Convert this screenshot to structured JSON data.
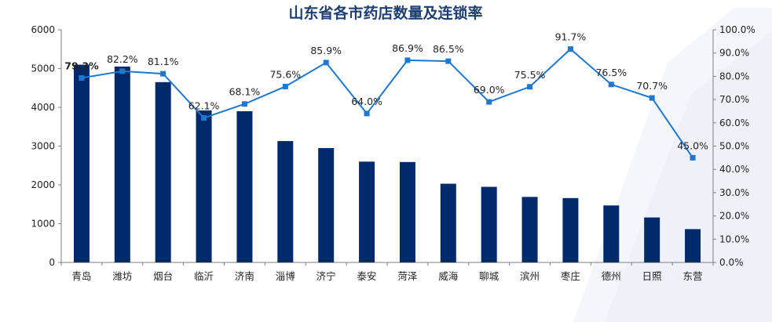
{
  "chart_data": {
    "type": "bar",
    "title": "山东省各市药店数量及连锁率",
    "categories": [
      "青岛",
      "潍坊",
      "烟台",
      "临沂",
      "济南",
      "淄博",
      "济宁",
      "泰安",
      "菏泽",
      "威海",
      "聊城",
      "滨州",
      "枣庄",
      "德州",
      "日照",
      "东营"
    ],
    "series": [
      {
        "type": "bar",
        "axis": "left",
        "color": "#002a6b",
        "values": [
          5100,
          5050,
          4650,
          3920,
          3900,
          3130,
          2950,
          2600,
          2590,
          2030,
          1950,
          1690,
          1660,
          1470,
          1160,
          860
        ]
      },
      {
        "type": "line",
        "axis": "right",
        "color": "#1f77d0",
        "values": [
          79.3,
          82.2,
          81.1,
          62.1,
          68.1,
          75.6,
          85.9,
          64.0,
          86.9,
          86.5,
          69.0,
          75.5,
          91.7,
          76.5,
          70.7,
          45.0
        ],
        "labels": [
          "79.3%",
          "82.2%",
          "81.1%",
          "62.1%",
          "68.1%",
          "75.6%",
          "85.9%",
          "64.0%",
          "86.9%",
          "86.5%",
          "69.0%",
          "75.5%",
          "91.7%",
          "76.5%",
          "70.7%",
          "45.0%"
        ]
      }
    ],
    "y_left": {
      "ylim": [
        0,
        6000
      ],
      "ticks": [
        "0",
        "1000",
        "2000",
        "3000",
        "4000",
        "5000",
        "6000"
      ]
    },
    "y_right": {
      "ylim": [
        0,
        100
      ],
      "ticks": [
        "0.0%",
        "10.0%",
        "20.0%",
        "30.0%",
        "40.0%",
        "50.0%",
        "60.0%",
        "70.0%",
        "80.0%",
        "90.0%",
        "100.0%"
      ]
    },
    "grid": false,
    "legend": "none",
    "background_watermark": "light blue chevron arrow, right side"
  }
}
